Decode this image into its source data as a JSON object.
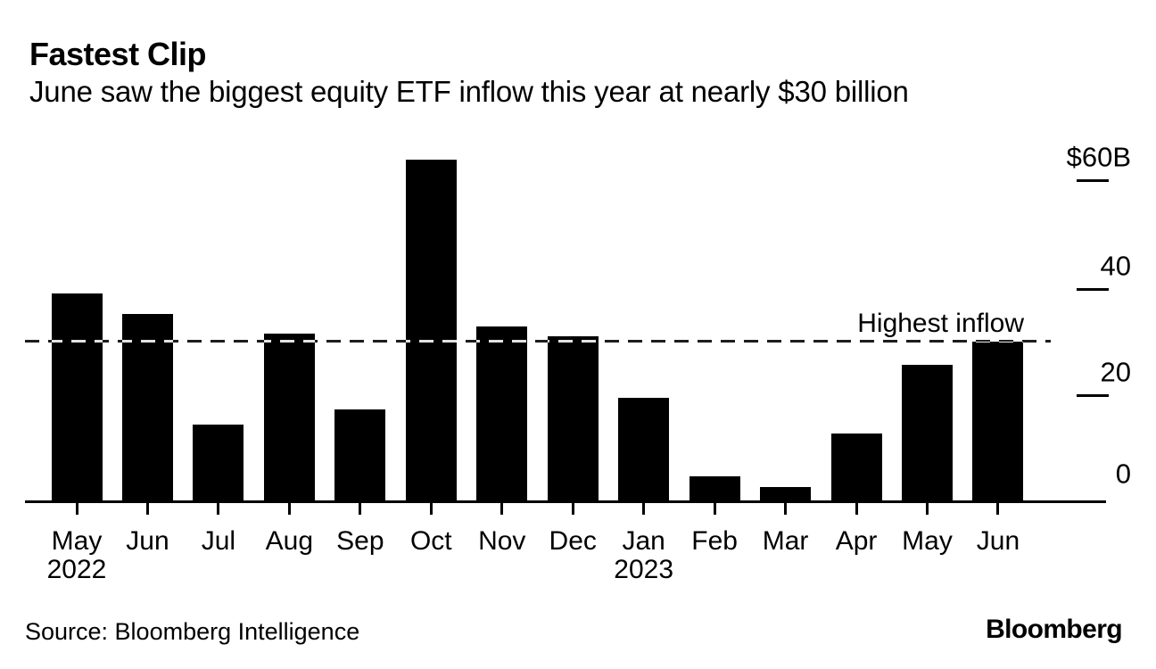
{
  "header": {
    "title": "Fastest Clip",
    "subtitle": "June saw the biggest equity ETF inflow this year at nearly $30 billion"
  },
  "chart_data": {
    "type": "bar",
    "title": "Fastest Clip",
    "subtitle": "June saw the biggest equity ETF inflow this year at nearly $30 billion",
    "unit": "USD billions",
    "bar_color": "#000000",
    "background_color": "#ffffff",
    "grid": false,
    "legend": false,
    "ylim": [
      0,
      66
    ],
    "ylabel": "",
    "xlabel": "",
    "categories": [
      "May 2022",
      "Jun",
      "Jul",
      "Aug",
      "Sep",
      "Oct",
      "Nov",
      "Dec",
      "Jan 2023",
      "Feb",
      "Mar",
      "Apr",
      "May",
      "Jun"
    ],
    "x_labels": [
      {
        "month": "May",
        "year": "2022"
      },
      {
        "month": "Jun",
        "year": ""
      },
      {
        "month": "Jul",
        "year": ""
      },
      {
        "month": "Aug",
        "year": ""
      },
      {
        "month": "Sep",
        "year": ""
      },
      {
        "month": "Oct",
        "year": ""
      },
      {
        "month": "Nov",
        "year": ""
      },
      {
        "month": "Dec",
        "year": ""
      },
      {
        "month": "Jan",
        "year": "2023"
      },
      {
        "month": "Feb",
        "year": ""
      },
      {
        "month": "Mar",
        "year": ""
      },
      {
        "month": "Apr",
        "year": ""
      },
      {
        "month": "May",
        "year": ""
      },
      {
        "month": "Jun",
        "year": ""
      }
    ],
    "values": [
      38.8,
      35.0,
      14.3,
      31.3,
      17.2,
      63.8,
      32.7,
      30.9,
      19.4,
      4.7,
      2.7,
      12.7,
      25.5,
      29.8
    ],
    "yticks": [
      {
        "label": "$60B",
        "value": 60
      },
      {
        "label": "40",
        "value": 40
      },
      {
        "label": "20",
        "value": 20
      },
      {
        "label": "0",
        "value": 0
      }
    ],
    "reference_line": {
      "value": 30,
      "label": "Highest inflow",
      "style": "dashed"
    }
  },
  "footer": {
    "source": "Source: Bloomberg Intelligence",
    "logo": "Bloomberg"
  }
}
